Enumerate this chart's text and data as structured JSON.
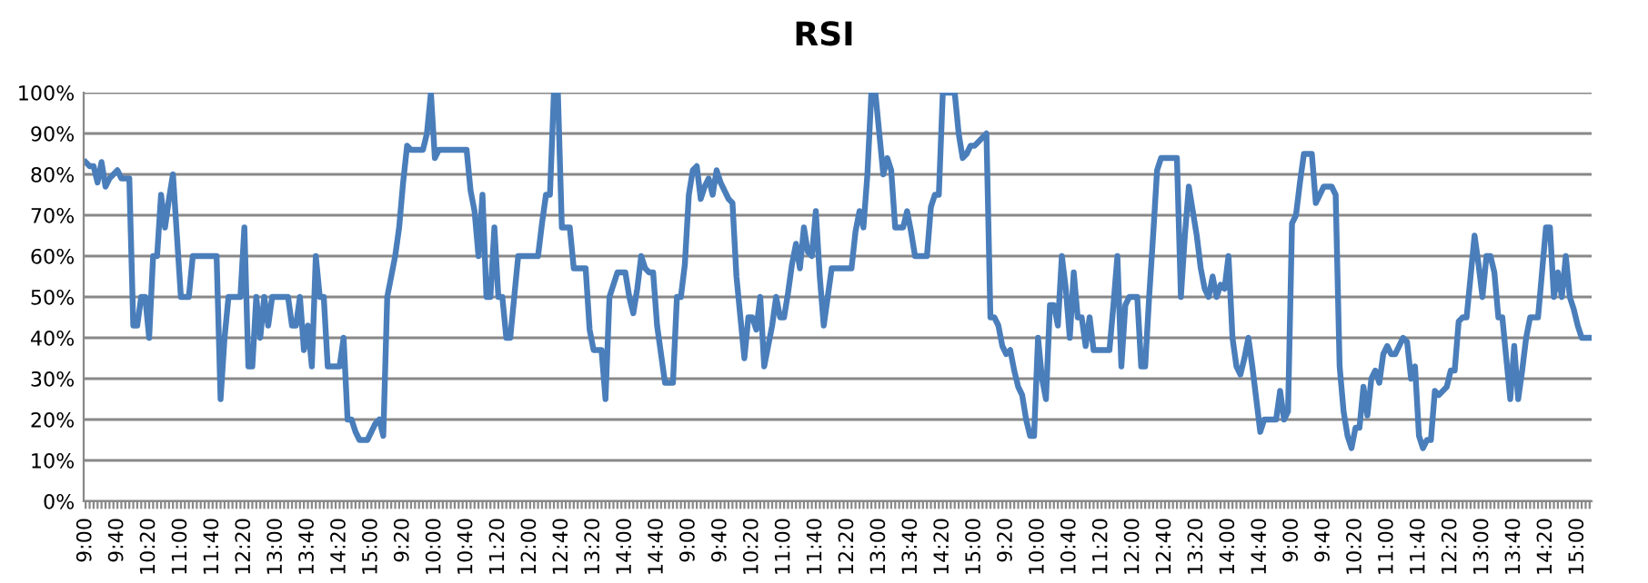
{
  "chart_data": {
    "type": "line",
    "title": "RSI",
    "categories": [
      "9:00",
      null,
      null,
      null,
      null,
      null,
      null,
      null,
      "9:40",
      null,
      null,
      null,
      null,
      null,
      null,
      null,
      "10:20",
      null,
      null,
      null,
      null,
      null,
      null,
      null,
      "11:00",
      null,
      null,
      null,
      null,
      null,
      null,
      null,
      "11:40",
      null,
      null,
      null,
      null,
      null,
      null,
      null,
      "12:20",
      null,
      null,
      null,
      null,
      null,
      null,
      null,
      "13:00",
      null,
      null,
      null,
      null,
      null,
      null,
      null,
      "13:40",
      null,
      null,
      null,
      null,
      null,
      null,
      null,
      "14:20",
      null,
      null,
      null,
      null,
      null,
      null,
      null,
      "15:00",
      null,
      null,
      null,
      null,
      null,
      null,
      null,
      "9:20",
      null,
      null,
      null,
      null,
      null,
      null,
      null,
      "10:00",
      null,
      null,
      null,
      null,
      null,
      null,
      null,
      "10:40",
      null,
      null,
      null,
      null,
      null,
      null,
      null,
      "11:20",
      null,
      null,
      null,
      null,
      null,
      null,
      null,
      "12:00",
      null,
      null,
      null,
      null,
      null,
      null,
      null,
      "12:40",
      null,
      null,
      null,
      null,
      null,
      null,
      null,
      "13:20",
      null,
      null,
      null,
      null,
      null,
      null,
      null,
      "14:00",
      null,
      null,
      null,
      null,
      null,
      null,
      null,
      "14:40",
      null,
      null,
      null,
      null,
      null,
      null,
      null,
      "9:00",
      null,
      null,
      null,
      null,
      null,
      null,
      null,
      "9:40",
      null,
      null,
      null,
      null,
      null,
      null,
      null,
      "10:20",
      null,
      null,
      null,
      null,
      null,
      null,
      null,
      "11:00",
      null,
      null,
      null,
      null,
      null,
      null,
      null,
      "11:40",
      null,
      null,
      null,
      null,
      null,
      null,
      null,
      "12:20",
      null,
      null,
      null,
      null,
      null,
      null,
      null,
      "13:00",
      null,
      null,
      null,
      null,
      null,
      null,
      null,
      "13:40",
      null,
      null,
      null,
      null,
      null,
      null,
      null,
      "14:20",
      null,
      null,
      null,
      null,
      null,
      null,
      null,
      "15:00",
      null,
      null,
      null,
      null,
      null,
      null,
      null,
      "9:20",
      null,
      null,
      null,
      null,
      null,
      null,
      null,
      "10:00",
      null,
      null,
      null,
      null,
      null,
      null,
      null,
      "10:40",
      null,
      null,
      null,
      null,
      null,
      null,
      null,
      "11:20",
      null,
      null,
      null,
      null,
      null,
      null,
      null,
      "12:00",
      null,
      null,
      null,
      null,
      null,
      null,
      null,
      "12:40",
      null,
      null,
      null,
      null,
      null,
      null,
      null,
      "13:20",
      null,
      null,
      null,
      null,
      null,
      null,
      null,
      "14:00",
      null,
      null,
      null,
      null,
      null,
      null,
      null,
      "14:40",
      null,
      null,
      null,
      null,
      null,
      null,
      null,
      "9:00",
      null,
      null,
      null,
      null,
      null,
      null,
      null,
      "9:40",
      null,
      null,
      null,
      null,
      null,
      null,
      null,
      "10:20",
      null,
      null,
      null,
      null,
      null,
      null,
      null,
      "11:00",
      null,
      null,
      null,
      null,
      null,
      null,
      null,
      "11:40",
      null,
      null,
      null,
      null,
      null,
      null,
      null,
      "12:20",
      null,
      null,
      null,
      null,
      null,
      null,
      null,
      "13:00",
      null,
      null,
      null,
      null,
      null,
      null,
      null,
      "13:40",
      null,
      null,
      null,
      null,
      null,
      null,
      null,
      "14:20",
      null,
      null,
      null,
      null,
      null,
      null,
      null,
      "15:00",
      null,
      null,
      null
    ],
    "series": [
      {
        "color": "#4a7ebb",
        "values": [
          83,
          82,
          82,
          78,
          83,
          77,
          79,
          80,
          81,
          79,
          79,
          79,
          43,
          43,
          50,
          50,
          40,
          60,
          60,
          75,
          67,
          74,
          80,
          65,
          50,
          50,
          50,
          60,
          60,
          60,
          60,
          60,
          60,
          60,
          25,
          40,
          50,
          50,
          50,
          50,
          67,
          33,
          33,
          50,
          40,
          50,
          43,
          50,
          50,
          50,
          50,
          50,
          43,
          43,
          50,
          37,
          43,
          33,
          60,
          50,
          50,
          33,
          33,
          33,
          33,
          40,
          20,
          20,
          17,
          15,
          15,
          15,
          17,
          19,
          20,
          16,
          50,
          55,
          60,
          67,
          78,
          87,
          86,
          86,
          86,
          86,
          90,
          100,
          84,
          86,
          86,
          86,
          86,
          86,
          86,
          86,
          86,
          76,
          71,
          60,
          75,
          50,
          50,
          67,
          50,
          50,
          40,
          40,
          50,
          60,
          60,
          60,
          60,
          60,
          60,
          68,
          75,
          75,
          100,
          100,
          67,
          67,
          67,
          57,
          57,
          57,
          57,
          42,
          37,
          37,
          37,
          25,
          50,
          53,
          56,
          56,
          56,
          50,
          46,
          52,
          60,
          57,
          56,
          56,
          43,
          36,
          29,
          29,
          29,
          50,
          50,
          58,
          75,
          81,
          82,
          74,
          77,
          79,
          75,
          81,
          78,
          76,
          74,
          73,
          55,
          45,
          35,
          45,
          45,
          42,
          50,
          33,
          38,
          43,
          50,
          45,
          45,
          51,
          58,
          63,
          57,
          67,
          61,
          60,
          71,
          55,
          43,
          50,
          57,
          57,
          57,
          57,
          57,
          57,
          66,
          71,
          67,
          80,
          100,
          100,
          90,
          80,
          84,
          81,
          67,
          67,
          67,
          71,
          66,
          60,
          60,
          60,
          60,
          72,
          75,
          75,
          100,
          100,
          100,
          100,
          90,
          84,
          85,
          87,
          87,
          88,
          89,
          90,
          45,
          45,
          43,
          38,
          36,
          37,
          32,
          28,
          26,
          20,
          16,
          16,
          40,
          30,
          25,
          48,
          48,
          43,
          60,
          52,
          40,
          56,
          45,
          45,
          38,
          45,
          37,
          37,
          37,
          37,
          37,
          48,
          60,
          33,
          48,
          50,
          50,
          50,
          33,
          33,
          50,
          65,
          81,
          84,
          84,
          84,
          84,
          84,
          50,
          65,
          77,
          71,
          65,
          57,
          52,
          50,
          55,
          50,
          53,
          52,
          60,
          40,
          33,
          31,
          35,
          40,
          33,
          25,
          17,
          20,
          20,
          20,
          20,
          27,
          20,
          22,
          68,
          70,
          78,
          85,
          85,
          85,
          73,
          75,
          77,
          77,
          77,
          75,
          33,
          22,
          16,
          13,
          18,
          18,
          28,
          21,
          30,
          32,
          29,
          36,
          38,
          36,
          36,
          38,
          40,
          39,
          30,
          33,
          16,
          13,
          15,
          15,
          27,
          26,
          27,
          28,
          32,
          32,
          44,
          45,
          45,
          55,
          65,
          58,
          50,
          60,
          60,
          56,
          45,
          45,
          35,
          25,
          38,
          25,
          32,
          40,
          45,
          45,
          45,
          56,
          67,
          67,
          50,
          56,
          50,
          60,
          50,
          47,
          43,
          40,
          40,
          40
        ]
      }
    ],
    "ylim": [
      0,
      100
    ],
    "yticks": [
      {
        "value": 0,
        "label": "0%"
      },
      {
        "value": 10,
        "label": "10%"
      },
      {
        "value": 20,
        "label": "20%"
      },
      {
        "value": 30,
        "label": "30%"
      },
      {
        "value": 40,
        "label": "40%"
      },
      {
        "value": 50,
        "label": "50%"
      },
      {
        "value": 60,
        "label": "60%"
      },
      {
        "value": 70,
        "label": "70%"
      },
      {
        "value": 80,
        "label": "80%"
      },
      {
        "value": 90,
        "label": "90%"
      },
      {
        "value": 100,
        "label": "100%"
      }
    ],
    "grid": "y",
    "marker": "none",
    "line_style": "solid"
  }
}
